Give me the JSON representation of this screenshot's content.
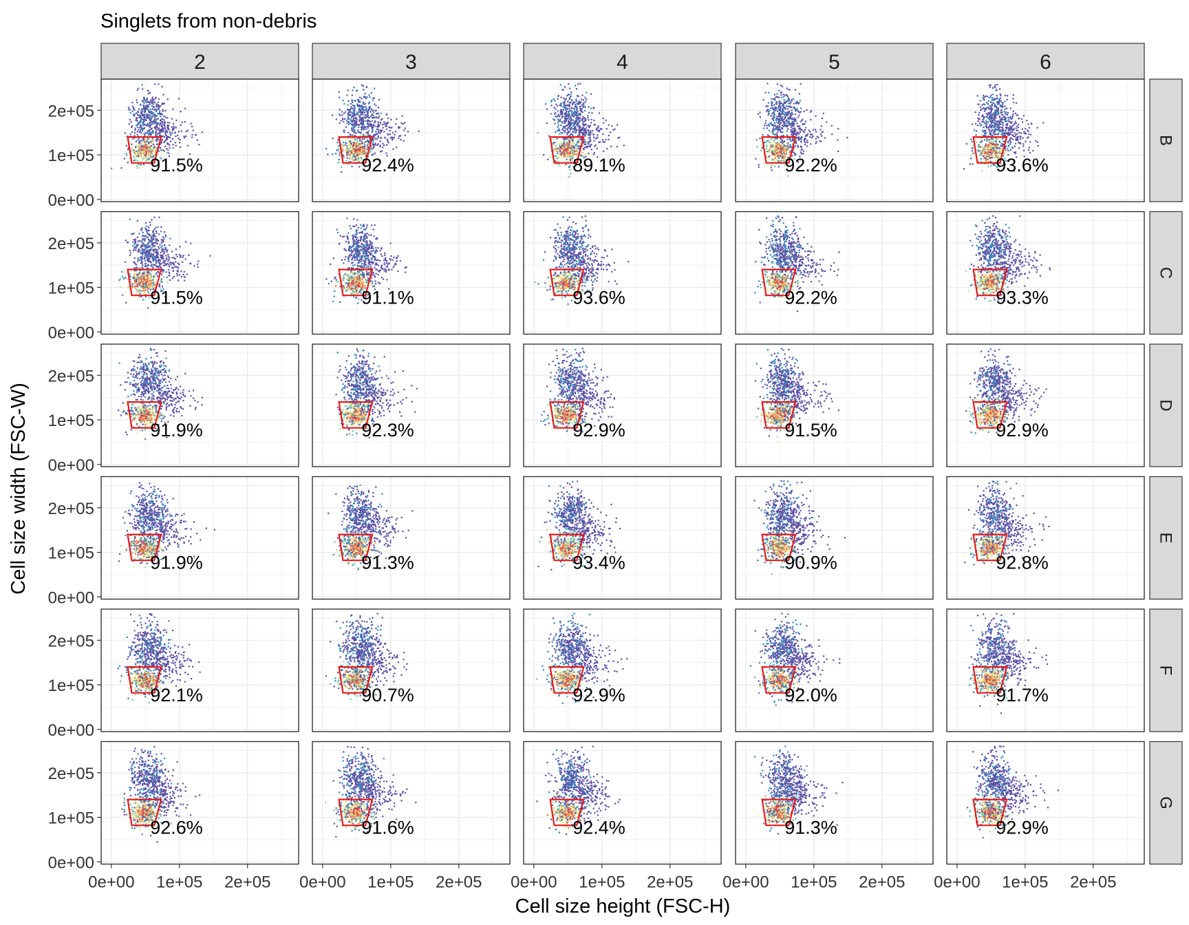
{
  "chart_data": {
    "type": "scatter",
    "title": "Singlets from non-debris",
    "xlabel": "Cell size height (FSC-H)",
    "ylabel": "Cell size width (FSC-W)",
    "columns": [
      "2",
      "3",
      "4",
      "5",
      "6"
    ],
    "rows": [
      "B",
      "C",
      "D",
      "E",
      "F",
      "G"
    ],
    "xlim": [
      -15000,
      275000
    ],
    "ylim": [
      -5000,
      270000
    ],
    "x_ticks": [
      0,
      100000,
      200000
    ],
    "x_tick_labels": [
      "0e+00",
      "1e+05",
      "2e+05"
    ],
    "y_ticks": [
      0,
      100000,
      200000
    ],
    "y_tick_labels": [
      "0e+00",
      "1e+05",
      "2e+05"
    ],
    "gate": {
      "color": "#e41a1c",
      "polygon": [
        [
          24000,
          140000
        ],
        [
          73000,
          140000
        ],
        [
          63000,
          82000
        ],
        [
          30000,
          82000
        ]
      ]
    },
    "density_colors": [
      "#5e4fa2",
      "#3288bd",
      "#66c2a5",
      "#abdda4",
      "#e6f598",
      "#fee08b",
      "#fdae61",
      "#f46d43",
      "#d53e4f"
    ],
    "grid": true,
    "legend": "none",
    "percent_labels": [
      [
        "91.5%",
        "92.4%",
        "89.1%",
        "92.2%",
        "93.6%"
      ],
      [
        "91.5%",
        "91.1%",
        "93.6%",
        "92.2%",
        "93.3%"
      ],
      [
        "91.9%",
        "92.3%",
        "92.9%",
        "91.5%",
        "92.9%"
      ],
      [
        "91.9%",
        "91.3%",
        "93.4%",
        "90.9%",
        "92.8%"
      ],
      [
        "92.1%",
        "90.7%",
        "92.9%",
        "92.0%",
        "91.7%"
      ],
      [
        "92.6%",
        "91.6%",
        "92.4%",
        "91.3%",
        "92.9%"
      ]
    ]
  }
}
